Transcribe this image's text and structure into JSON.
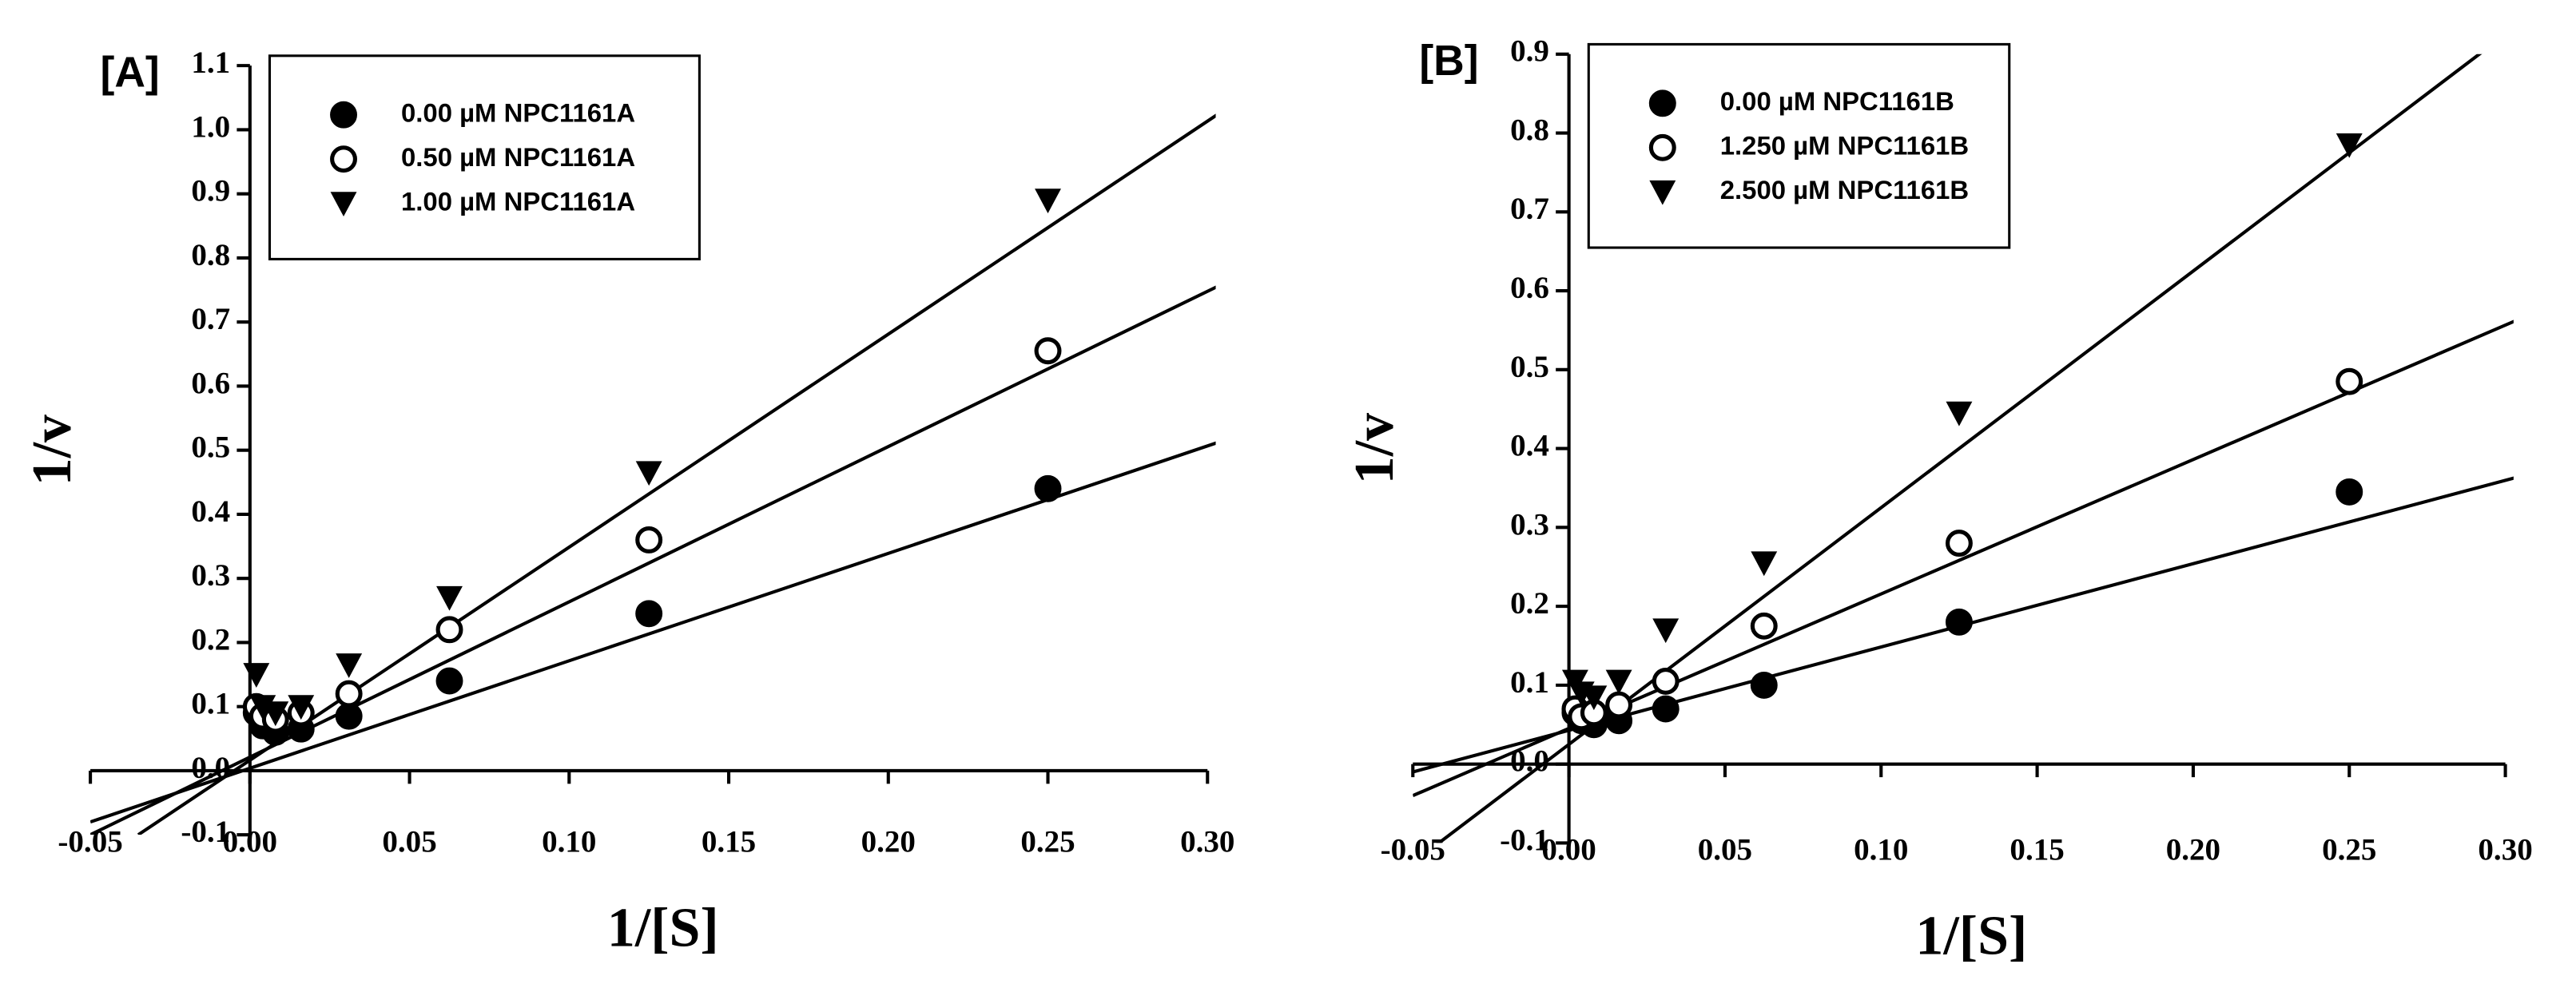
{
  "chart_data": [
    {
      "type": "scatter",
      "panel_label": "[A]",
      "x_label": "1/[S]",
      "y_label": "1/v",
      "xlim": [
        -0.05,
        0.3
      ],
      "ylim": [
        -0.1,
        1.1
      ],
      "xticks": [
        -0.05,
        {
          "value": 0,
          "label": "0.00"
        },
        0.05,
        {
          "value": 0.1,
          "label": "0.10"
        },
        0.15,
        {
          "value": 0.2,
          "label": "0.20"
        },
        0.25,
        {
          "value": 0.3,
          "label": "0.30"
        }
      ],
      "yticks": [
        -0.1,
        {
          "value": 0,
          "label": "0.0"
        },
        0.1,
        0.2,
        0.3,
        0.4,
        0.5,
        0.6,
        0.7,
        0.8,
        0.9,
        {
          "value": 1.0,
          "label": "1.0"
        },
        1.1
      ],
      "legend": "upper left",
      "series": [
        {
          "name": "0.00 µM NPC1161A",
          "marker": "filled-circle",
          "color": "#000000",
          "x": [
            0.002,
            0.004,
            0.008,
            0.016,
            0.031,
            0.0625,
            0.125,
            0.25
          ],
          "values": [
            0.09,
            0.07,
            0.06,
            0.065,
            0.085,
            0.14,
            0.245,
            0.44
          ],
          "fit": {
            "x": [
              -0.05,
              0.305
            ],
            "values": [
              -0.08,
              0.515
            ]
          }
        },
        {
          "name": "0.50 µM NPC1161A",
          "marker": "open-circle",
          "color": "#000000",
          "x": [
            0.002,
            0.004,
            0.008,
            0.016,
            0.031,
            0.0625,
            0.125,
            0.25
          ],
          "values": [
            0.1,
            0.085,
            0.08,
            0.09,
            0.12,
            0.22,
            0.36,
            0.655
          ],
          "fit": {
            "x": [
              -0.05,
              0.305
            ],
            "values": [
              -0.1,
              0.76
            ]
          }
        },
        {
          "name": "1.00 µM NPC1161A",
          "marker": "filled-triangle-down",
          "color": "#000000",
          "x": [
            0.002,
            0.004,
            0.008,
            0.016,
            0.031,
            0.0625,
            0.125,
            0.25
          ],
          "values": [
            0.15,
            0.1,
            0.09,
            0.1,
            0.165,
            0.27,
            0.465,
            0.89
          ],
          "fit": {
            "x": [
              -0.035,
              0.305
            ],
            "values": [
              -0.1,
              1.03
            ]
          }
        }
      ]
    },
    {
      "type": "scatter",
      "panel_label": "[B]",
      "x_label": "1/[S]",
      "y_label": "1/v",
      "xlim": [
        -0.05,
        0.3
      ],
      "ylim": [
        -0.1,
        0.9
      ],
      "xticks": [
        -0.05,
        {
          "value": 0,
          "label": "0.00"
        },
        0.05,
        {
          "value": 0.1,
          "label": "0.10"
        },
        0.15,
        {
          "value": 0.2,
          "label": "0.20"
        },
        0.25,
        {
          "value": 0.3,
          "label": "0.30"
        }
      ],
      "yticks": [
        -0.1,
        {
          "value": 0,
          "label": "0.0"
        },
        0.1,
        0.2,
        0.3,
        0.4,
        0.5,
        0.6,
        0.7,
        0.8,
        0.9
      ],
      "legend": "upper left",
      "series": [
        {
          "name": "0.00 µM NPC1161B",
          "marker": "filled-circle",
          "color": "#000000",
          "x": [
            0.002,
            0.004,
            0.008,
            0.016,
            0.031,
            0.0625,
            0.125,
            0.25
          ],
          "values": [
            0.065,
            0.055,
            0.05,
            0.055,
            0.07,
            0.1,
            0.18,
            0.345
          ],
          "fit": {
            "x": [
              -0.05,
              0.305
            ],
            "values": [
              -0.01,
              0.365
            ]
          }
        },
        {
          "name": "1.250 µM NPC1161B",
          "marker": "open-circle",
          "color": "#000000",
          "x": [
            0.002,
            0.004,
            0.008,
            0.016,
            0.031,
            0.0625,
            0.125,
            0.25
          ],
          "values": [
            0.07,
            0.06,
            0.065,
            0.075,
            0.105,
            0.175,
            0.28,
            0.485
          ],
          "fit": {
            "x": [
              -0.05,
              0.305
            ],
            "values": [
              -0.04,
              0.565
            ]
          }
        },
        {
          "name": "2.500 µM NPC1161B",
          "marker": "filled-triangle-down",
          "color": "#000000",
          "x": [
            0.002,
            0.004,
            0.008,
            0.016,
            0.031,
            0.0625,
            0.125,
            0.25
          ],
          "values": [
            0.105,
            0.09,
            0.085,
            0.105,
            0.17,
            0.255,
            0.445,
            0.785
          ],
          "fit": {
            "x": [
              -0.05,
              0.3
            ],
            "values": [
              -0.125,
              0.925
            ]
          }
        }
      ]
    }
  ]
}
